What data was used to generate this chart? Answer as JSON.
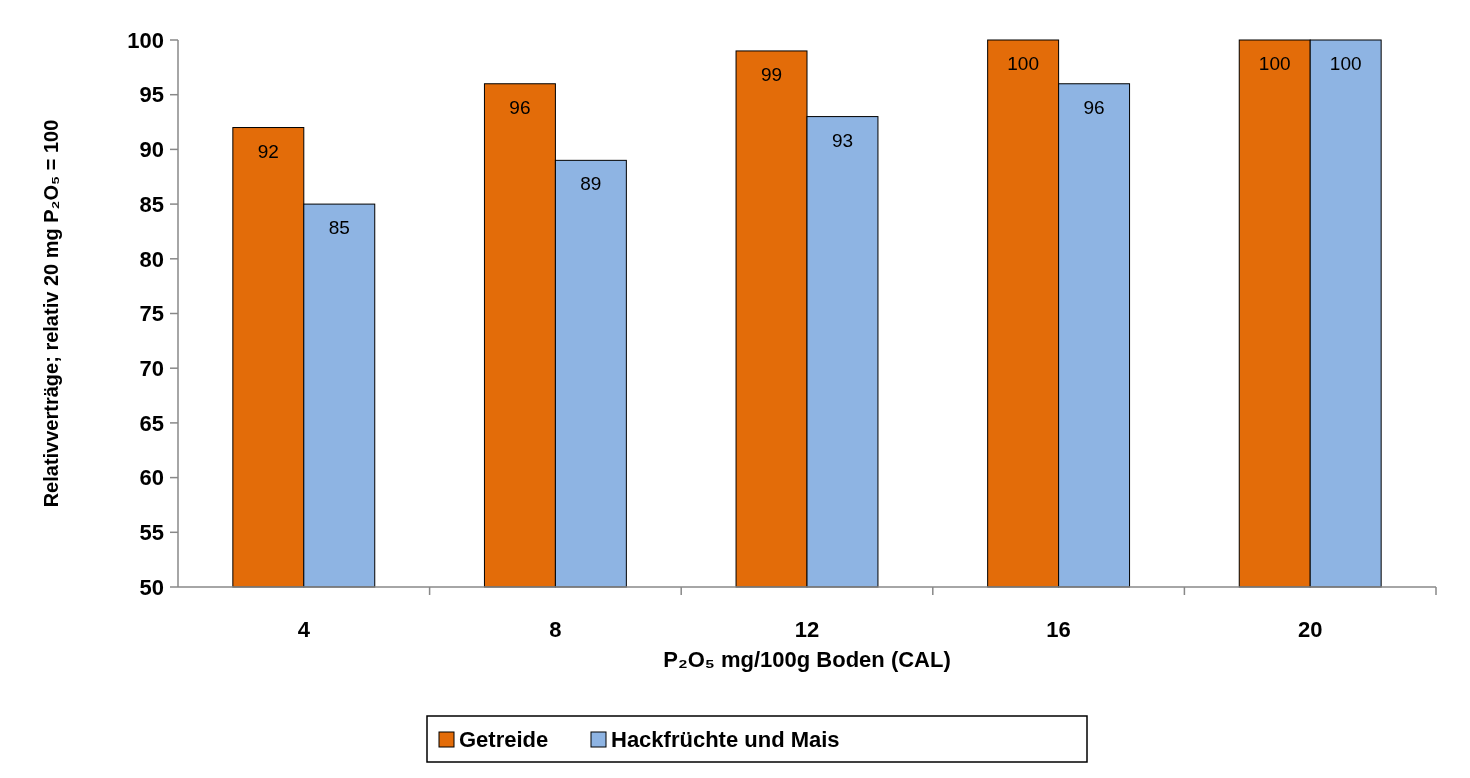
{
  "chart_data": {
    "type": "bar",
    "xlabel": "P₂O₅ mg/100g Boden (CAL)",
    "ylabel": "Relativverträge; relativ 20 mg P₂O₅ = 100",
    "categories": [
      "4",
      "8",
      "12",
      "16",
      "20"
    ],
    "series": [
      {
        "name": "Getreide",
        "color": "#e36c09",
        "values": [
          92,
          96,
          99,
          100,
          100
        ]
      },
      {
        "name": "Hackfrüchte und Mais",
        "color": "#8eb4e3",
        "values": [
          85,
          89,
          93,
          96,
          100
        ]
      }
    ],
    "ylim": [
      50,
      100
    ],
    "yticks": [
      50,
      55,
      60,
      65,
      70,
      75,
      80,
      85,
      90,
      95,
      100
    ],
    "grid": false,
    "legend": "bottom",
    "data_labels": true
  }
}
